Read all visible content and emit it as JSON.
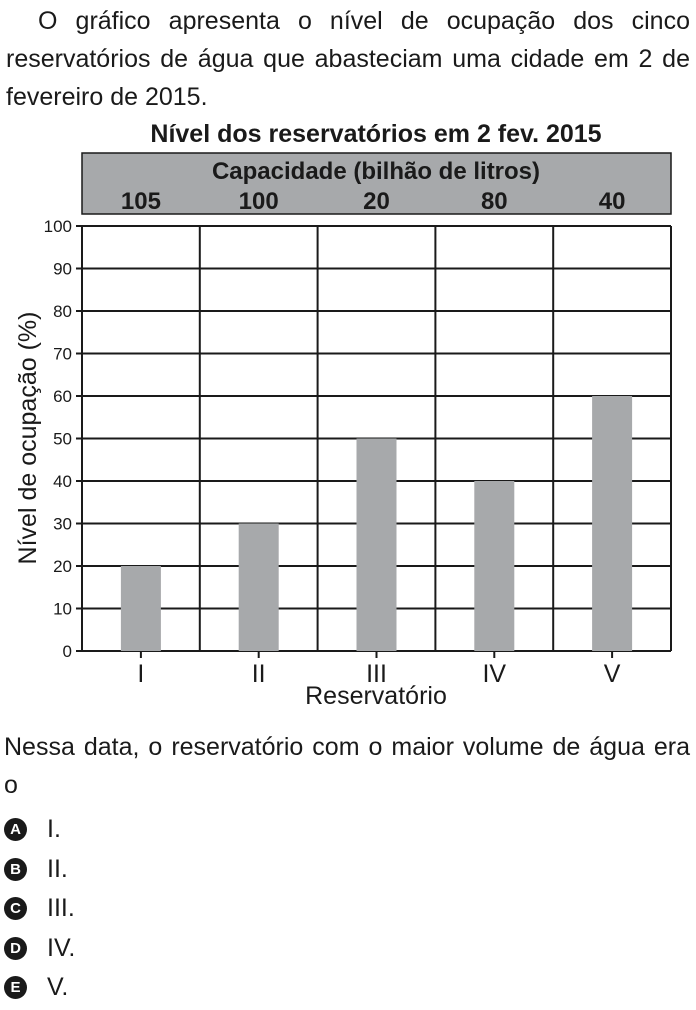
{
  "intro_text": "O gráfico apresenta o nível de ocupação dos cinco reservatórios de água que abasteciam uma cidade em 2 de fevereiro de 2015.",
  "chart_data": {
    "type": "bar",
    "title": "Nível dos reservatórios em 2 fev. 2015",
    "header_title": "Capacidade (bilhão de litros)",
    "categories": [
      "I",
      "II",
      "III",
      "IV",
      "V"
    ],
    "capacities": [
      105,
      100,
      20,
      80,
      40
    ],
    "values": [
      20,
      30,
      50,
      40,
      60
    ],
    "xlabel": "Reservatório",
    "ylabel": "Nível de ocupação (%)",
    "ylim": [
      0,
      100
    ],
    "yticks": [
      0,
      10,
      20,
      30,
      40,
      50,
      60,
      70,
      80,
      90,
      100
    ],
    "grid": true,
    "bar_color": "#a7a9ab",
    "header_color": "#a7a9ab"
  },
  "question_text": "Nessa data, o reservatório com o maior volume de água era o",
  "options": [
    {
      "letter": "A",
      "text": "I."
    },
    {
      "letter": "B",
      "text": "II."
    },
    {
      "letter": "C",
      "text": "III."
    },
    {
      "letter": "D",
      "text": "IV."
    },
    {
      "letter": "E",
      "text": "V."
    }
  ]
}
